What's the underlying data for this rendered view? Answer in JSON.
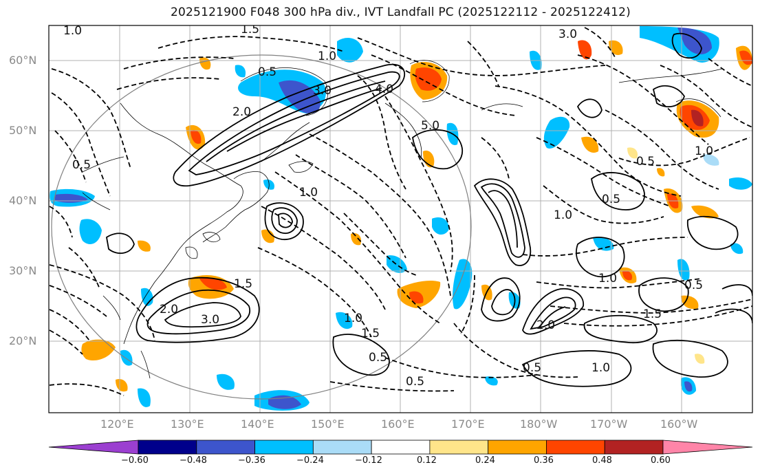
{
  "title": "2025121900 F048 300 hPa div., IVT Landfall PC (2025122112 - 2025122412)",
  "lat_labels": [
    "60°N",
    "50°N",
    "40°N",
    "30°N",
    "20°N"
  ],
  "lon_labels": [
    "120°E",
    "130°E",
    "140°E",
    "150°E",
    "160°E",
    "170°E",
    "180°W",
    "170°W",
    "160°W"
  ],
  "colorbar": {
    "ticks": [
      "−0.60",
      "−0.48",
      "−0.36",
      "−0.24",
      "−0.12",
      "0.12",
      "0.24",
      "0.36",
      "0.48",
      "0.60"
    ],
    "colors": [
      "#9b3fd0",
      "#00008b",
      "#3d55cc",
      "#00bfff",
      "#aadcf7",
      "#ffffff",
      "#ffe58a",
      "#ffa500",
      "#ff4500",
      "#b22222",
      "#ff85a8"
    ]
  },
  "contour_labels": [
    {
      "text": "1.0"
    },
    {
      "text": "3.0"
    },
    {
      "text": "2.0"
    },
    {
      "text": "0.5"
    },
    {
      "text": "4.0"
    },
    {
      "text": "5.0"
    },
    {
      "text": "3.0"
    },
    {
      "text": "1.5"
    },
    {
      "text": "1.0"
    },
    {
      "text": "0.5"
    },
    {
      "text": "1.0"
    },
    {
      "text": "1.5"
    },
    {
      "text": "2.0"
    },
    {
      "text": "3.0"
    },
    {
      "text": "0.5"
    },
    {
      "text": "1.0"
    },
    {
      "text": "1.5"
    },
    {
      "text": "0.5"
    },
    {
      "text": "1.0"
    },
    {
      "text": "2.0"
    },
    {
      "text": "0.5"
    },
    {
      "text": "1.0"
    },
    {
      "text": "1.5"
    },
    {
      "text": "0.5"
    },
    {
      "text": "1.0"
    },
    {
      "text": "0.5"
    },
    {
      "text": "1.0"
    },
    {
      "text": "0.5"
    }
  ]
}
